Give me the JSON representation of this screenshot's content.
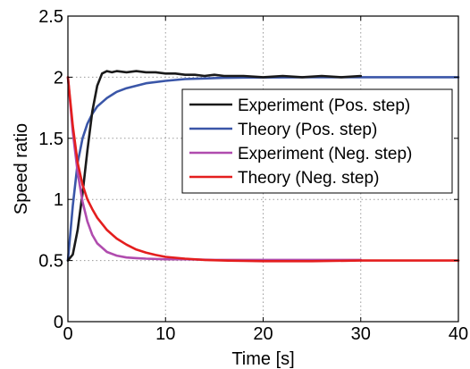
{
  "chart_data": {
    "type": "line",
    "xlabel": "Time [s]",
    "ylabel": "Speed ratio",
    "xlim": [
      0,
      40
    ],
    "ylim": [
      0,
      2.5
    ],
    "xticks": [
      "0",
      "10",
      "20",
      "30",
      "40"
    ],
    "yticks": [
      "0",
      "0.5",
      "1",
      "1.5",
      "2",
      "2.5"
    ],
    "grid": "dotted",
    "legend_position": "upper-right",
    "series": [
      {
        "name": "Experiment (Pos. step)",
        "color": "#1a1a1a",
        "x": [
          0,
          0.5,
          1,
          1.5,
          2,
          2.5,
          3,
          3.5,
          4,
          4.5,
          5,
          6,
          7,
          8,
          9,
          10,
          11,
          12,
          13,
          14,
          15,
          16,
          18,
          20,
          22,
          24,
          26,
          28,
          30
        ],
        "y": [
          0.5,
          0.55,
          0.75,
          1.05,
          1.4,
          1.72,
          1.93,
          2.03,
          2.05,
          2.04,
          2.05,
          2.04,
          2.05,
          2.04,
          2.04,
          2.03,
          2.03,
          2.02,
          2.02,
          2.01,
          2.02,
          2.01,
          2.01,
          2.0,
          2.01,
          2.0,
          2.01,
          2.0,
          2.01
        ]
      },
      {
        "name": "Theory (Pos. step)",
        "color": "#3a56a8",
        "x": [
          0,
          0.5,
          1,
          1.5,
          2,
          2.5,
          3,
          4,
          5,
          6,
          7,
          8,
          10,
          12,
          14,
          16,
          18,
          20,
          25,
          30,
          35,
          40
        ],
        "y": [
          0.5,
          0.95,
          1.3,
          1.5,
          1.62,
          1.7,
          1.76,
          1.83,
          1.88,
          1.91,
          1.93,
          1.95,
          1.97,
          1.985,
          1.99,
          1.995,
          1.997,
          1.998,
          2.0,
          2.0,
          2.0,
          2.0
        ]
      },
      {
        "name": "Experiment (Neg. step)",
        "color": "#b04cae",
        "x": [
          0,
          0.5,
          1,
          1.5,
          2,
          2.5,
          3,
          4,
          5,
          6,
          7,
          8,
          10,
          12,
          15,
          20,
          25,
          30
        ],
        "y": [
          2.0,
          1.55,
          1.22,
          0.98,
          0.82,
          0.71,
          0.64,
          0.57,
          0.54,
          0.525,
          0.52,
          0.515,
          0.51,
          0.51,
          0.505,
          0.505,
          0.505,
          0.505
        ]
      },
      {
        "name": "Theory (Neg. step)",
        "color": "#e41e1e",
        "x": [
          0,
          0.5,
          1,
          1.5,
          2,
          2.5,
          3,
          4,
          5,
          6,
          7,
          8,
          9,
          10,
          12,
          14,
          16,
          18,
          20,
          25,
          30,
          35,
          40
        ],
        "y": [
          2.0,
          1.6,
          1.3,
          1.12,
          1.0,
          0.92,
          0.85,
          0.75,
          0.68,
          0.63,
          0.59,
          0.565,
          0.545,
          0.53,
          0.515,
          0.505,
          0.5,
          0.497,
          0.495,
          0.495,
          0.5,
          0.5,
          0.5
        ]
      }
    ]
  }
}
